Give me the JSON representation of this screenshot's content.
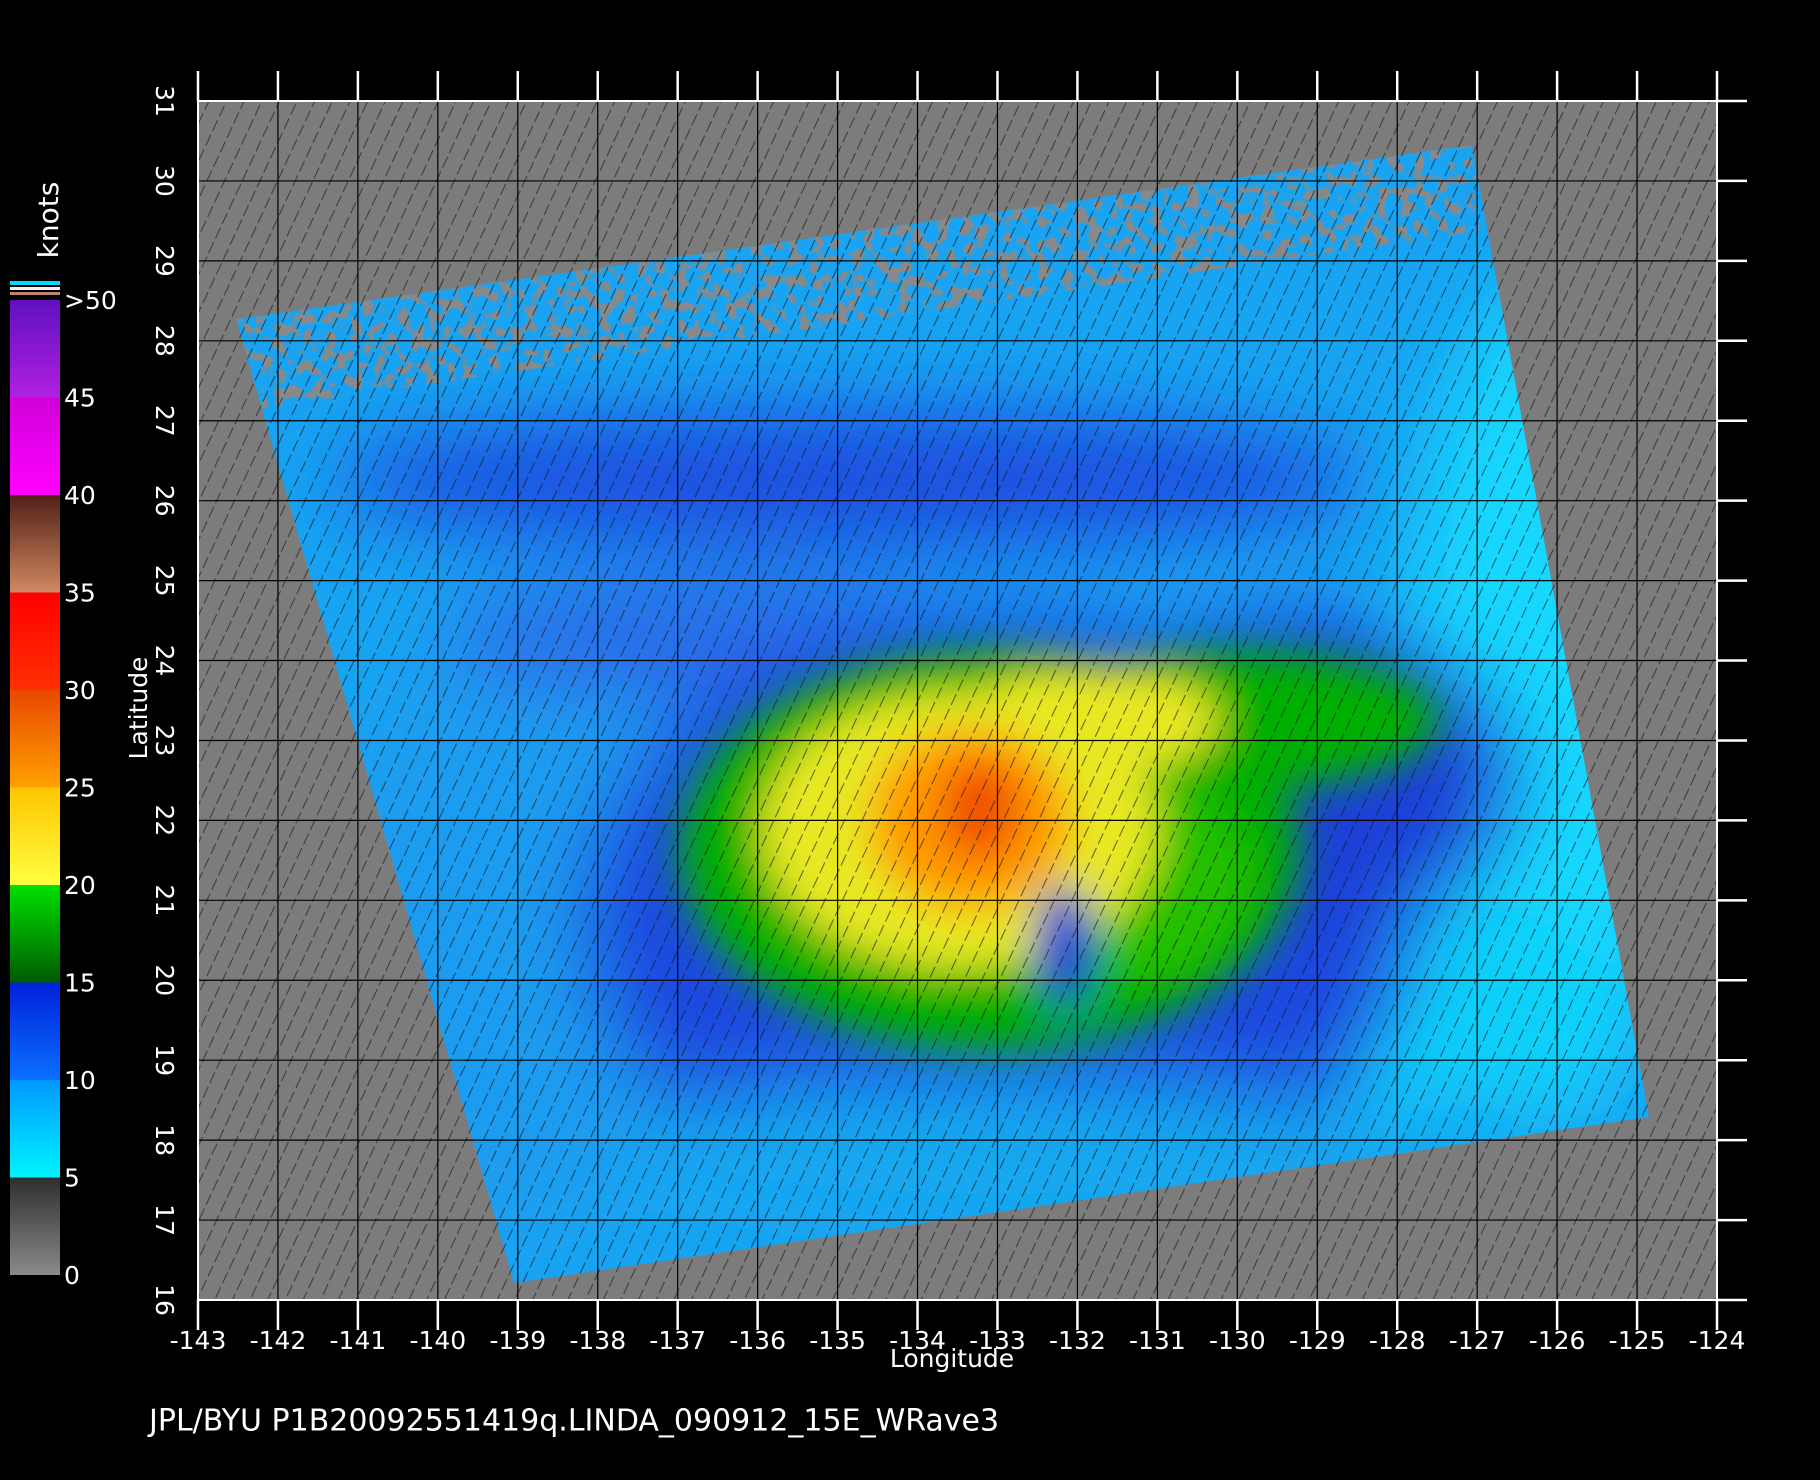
{
  "chart_data": {
    "type": "map",
    "xlabel": "Longitude",
    "ylabel": "Latitude",
    "xlim": [
      -143,
      -124
    ],
    "ylim": [
      16,
      31
    ],
    "xticks": [
      -143,
      -142,
      -141,
      -140,
      -139,
      -138,
      -137,
      -136,
      -135,
      -134,
      -133,
      -132,
      -131,
      -130,
      -129,
      -128,
      -127,
      -126,
      -125,
      -124
    ],
    "yticks": [
      16,
      17,
      18,
      19,
      20,
      21,
      22,
      23,
      24,
      25,
      26,
      27,
      28,
      29,
      30,
      31
    ],
    "grid": true,
    "colorbar": {
      "label": "knots",
      "ticks": [
        0,
        5,
        10,
        15,
        20,
        25,
        30,
        35,
        40,
        45,
        {
          "value": 50,
          "label": ">50"
        }
      ],
      "colors": [
        [
          "#8a8a8a",
          "#2e2e2e"
        ],
        [
          "#00f4ff",
          "#0098ff"
        ],
        [
          "#0a70ff",
          "#0020d8"
        ],
        [
          "#005a00",
          "#00e000"
        ],
        [
          "#ffff40",
          "#ffc400"
        ],
        [
          "#ffa000",
          "#e84800"
        ],
        [
          "#ff3000",
          "#ff0000"
        ],
        [
          "#d08860",
          "#502018"
        ],
        [
          "#ff00ff",
          "#d000d8"
        ],
        [
          "#b020e0",
          "#6010c0"
        ]
      ]
    },
    "footer": "JPL/BYU  P1B20092551419q.LINDA_090912_15E_WRave3"
  }
}
